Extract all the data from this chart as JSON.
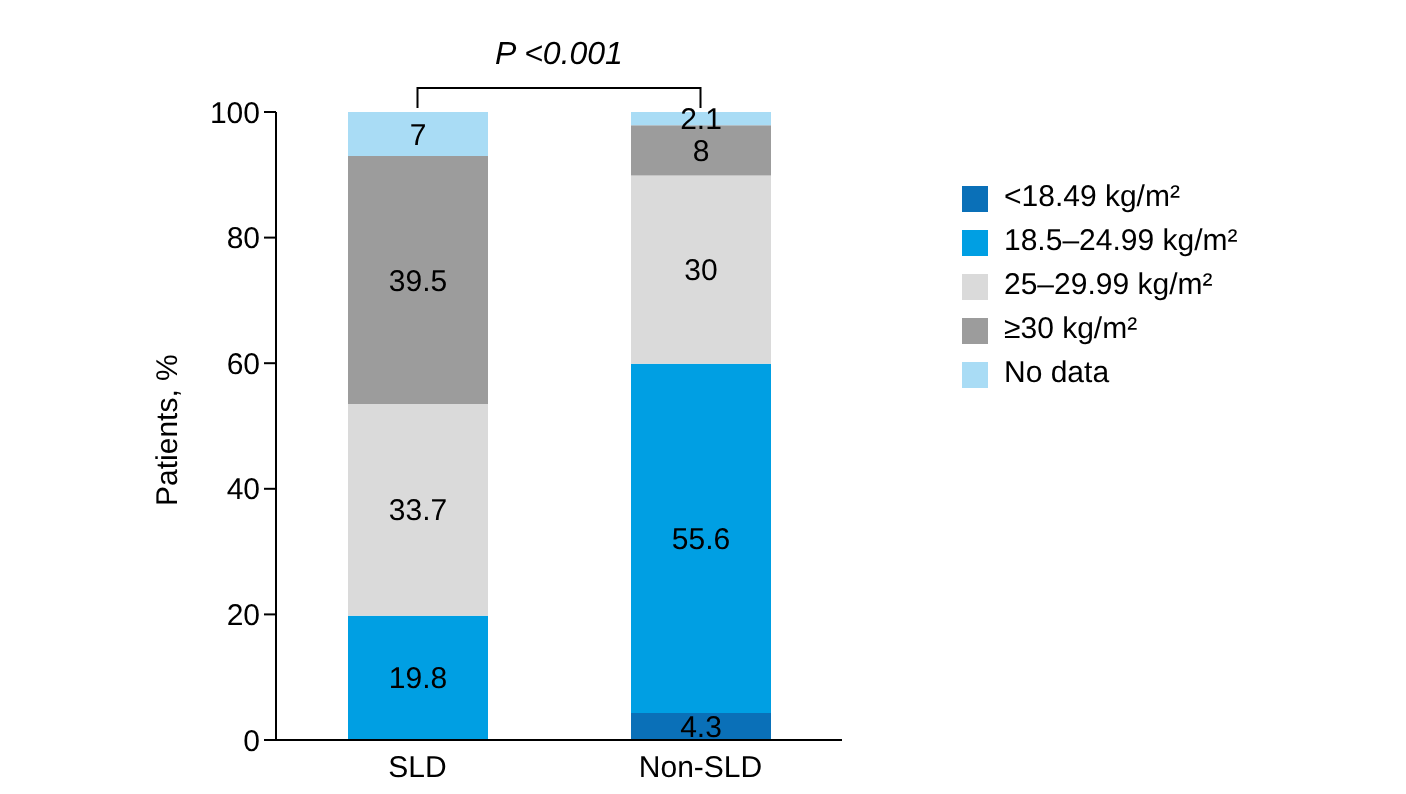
{
  "chart_data": {
    "type": "bar",
    "stacked": true,
    "categories": [
      "SLD",
      "Non-SLD"
    ],
    "ylabel": "Patients, %",
    "ylim": [
      0,
      100
    ],
    "yticks": [
      0,
      20,
      40,
      60,
      80,
      100
    ],
    "grid": false,
    "legend": "right",
    "annotations": [
      "P <0.001"
    ],
    "series": [
      {
        "name": "<18.49 kg/m²",
        "color": "#0a70b8",
        "values": [
          0,
          4.3
        ],
        "value_labels": [
          null,
          "4.3"
        ]
      },
      {
        "name": "18.5–24.99 kg/m²",
        "color": "#009fe3",
        "values": [
          19.8,
          55.6
        ],
        "value_labels": [
          "19.8",
          "55.6"
        ]
      },
      {
        "name": "25–29.99 kg/m²",
        "color": "#dadada",
        "values": [
          33.7,
          30
        ],
        "value_labels": [
          "33.7",
          "30"
        ]
      },
      {
        "name": "≥30 kg/m²",
        "color": "#9c9c9c",
        "values": [
          39.5,
          8
        ],
        "value_labels": [
          "39.5",
          "8"
        ]
      },
      {
        "name": "No data",
        "color": "#a9dcf5",
        "values": [
          7,
          2.1
        ],
        "value_labels": [
          "7",
          "2.1"
        ]
      }
    ]
  }
}
